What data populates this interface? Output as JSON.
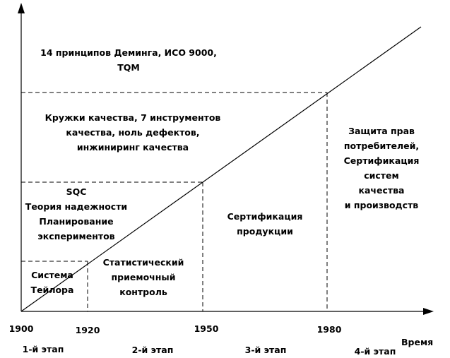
{
  "region_labels": {
    "deming_tqm": "14 принципов Деминга, ИСО 9000,\nTQM",
    "quality_circles": "Кружки качества, 7 инструментов\nкачества, ноль дефектов,\nинжиниринг качества",
    "sqc": "SQC\nТеория надежности\nПланирование\nэкспериментов",
    "taylor": "Система\nТейлора",
    "statistical_control": "Статистический\nприемочный\nконтроль",
    "product_certification": "Сертификация\nпродукции",
    "consumer_protection": "Защита прав\nпотребителей,\nСертификация\nсистем качества\nи производств"
  },
  "x_axis": {
    "ticks": [
      "1900",
      "1920",
      "1950",
      "1980"
    ],
    "title": "Время"
  },
  "stages": [
    "1-й этап",
    "2-й этап",
    "3-й этап",
    "4-й этап"
  ],
  "colors": {
    "line": "#000000",
    "background": "#ffffff"
  }
}
